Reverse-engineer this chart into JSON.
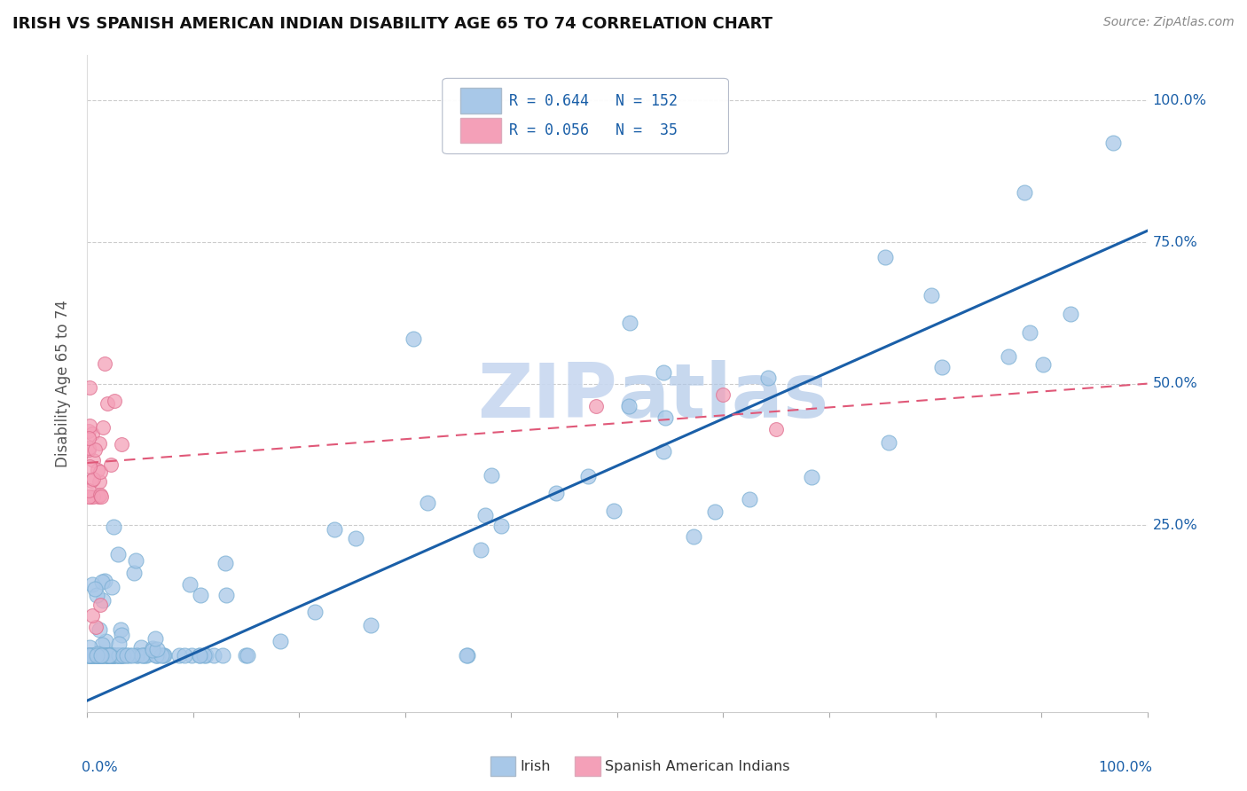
{
  "title": "IRISH VS SPANISH AMERICAN INDIAN DISABILITY AGE 65 TO 74 CORRELATION CHART",
  "source": "Source: ZipAtlas.com",
  "ylabel": "Disability Age 65 to 74",
  "legend_irish_R": "R = 0.644",
  "legend_irish_N": "N = 152",
  "legend_sai_R": "R = 0.056",
  "legend_sai_N": "N =  35",
  "irish_color": "#a8c8e8",
  "irish_edge_color": "#7aafd4",
  "irish_line_color": "#1a5fa8",
  "sai_color": "#f4a0b8",
  "sai_edge_color": "#e07090",
  "sai_line_color": "#e05878",
  "watermark_color": "#c8d8f0",
  "background_color": "#ffffff",
  "xlim": [
    0.0,
    1.0
  ],
  "ylim": [
    -0.08,
    1.08
  ],
  "ytick_vals": [
    0.25,
    0.5,
    0.75,
    1.0
  ],
  "ytick_labels": [
    "25.0%",
    "50.0%",
    "75.0%",
    "100.0%"
  ],
  "xtick_labels_show": [
    "0.0%",
    "100.0%"
  ],
  "irish_line_y0": -0.06,
  "irish_line_y1": 0.77,
  "sai_line_y0": 0.36,
  "sai_line_y1": 0.5
}
